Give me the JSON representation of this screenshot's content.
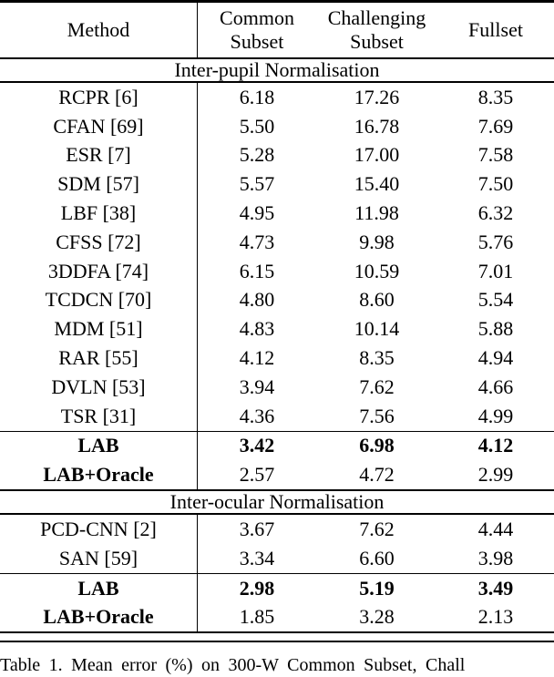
{
  "table": {
    "header": {
      "method": "Method",
      "col1_line1": "Common",
      "col1_line2": "Subset",
      "col2_line1": "Challenging",
      "col2_line2": "Subset",
      "col3": "Fullset"
    },
    "sections": [
      {
        "title": "Inter-pupil Normalisation",
        "rows": [
          {
            "method": "RCPR [6]",
            "values": [
              "6.18",
              "17.26",
              "8.35"
            ]
          },
          {
            "method": "CFAN [69]",
            "values": [
              "5.50",
              "16.78",
              "7.69"
            ]
          },
          {
            "method": "ESR [7]",
            "values": [
              "5.28",
              "17.00",
              "7.58"
            ]
          },
          {
            "method": "SDM [57]",
            "values": [
              "5.57",
              "15.40",
              "7.50"
            ]
          },
          {
            "method": "LBF [38]",
            "values": [
              "4.95",
              "11.98",
              "6.32"
            ]
          },
          {
            "method": "CFSS [72]",
            "values": [
              "4.73",
              "9.98",
              "5.76"
            ]
          },
          {
            "method": "3DDFA [74]",
            "values": [
              "6.15",
              "10.59",
              "7.01"
            ]
          },
          {
            "method": "TCDCN [70]",
            "values": [
              "4.80",
              "8.60",
              "5.54"
            ]
          },
          {
            "method": "MDM [51]",
            "values": [
              "4.83",
              "10.14",
              "5.88"
            ]
          },
          {
            "method": "RAR [55]",
            "values": [
              "4.12",
              "8.35",
              "4.94"
            ]
          },
          {
            "method": "DVLN [53]",
            "values": [
              "3.94",
              "7.62",
              "4.66"
            ]
          },
          {
            "method": "TSR [31]",
            "values": [
              "4.36",
              "7.56",
              "4.99"
            ]
          },
          {
            "method": "LAB",
            "values": [
              "3.42",
              "6.98",
              "4.12"
            ],
            "bold_method": true,
            "bold_values": true,
            "rule_above": true
          },
          {
            "method": "LAB+Oracle",
            "values": [
              "2.57",
              "4.72",
              "2.99"
            ],
            "bold_method": true
          }
        ]
      },
      {
        "title": "Inter-ocular Normalisation",
        "rows": [
          {
            "method": "PCD-CNN [2]",
            "values": [
              "3.67",
              "7.62",
              "4.44"
            ]
          },
          {
            "method": "SAN [59]",
            "values": [
              "3.34",
              "6.60",
              "3.98"
            ]
          },
          {
            "method": "LAB",
            "values": [
              "2.98",
              "5.19",
              "3.49"
            ],
            "bold_method": true,
            "bold_values": true,
            "rule_above": true
          },
          {
            "method": "LAB+Oracle",
            "values": [
              "1.85",
              "3.28",
              "2.13"
            ],
            "bold_method": true
          }
        ]
      }
    ]
  },
  "caption": "Table 1.  Mean error (%) on 300-W Common Subset, Chall"
}
